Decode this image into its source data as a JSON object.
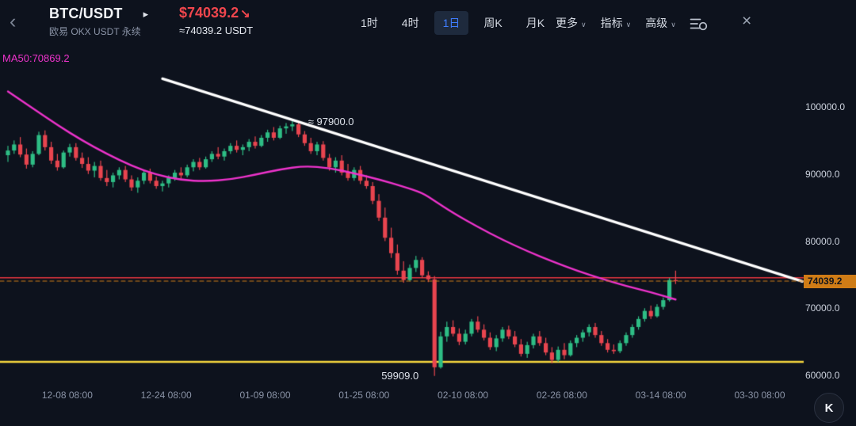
{
  "header": {
    "symbol": "BTC/USDT",
    "exchange_label": "欧易 OKX USDT 永续",
    "price": "$74039.2",
    "price_direction": "↘",
    "approx_price": "≈74039.2 USDT",
    "caret": "∨",
    "icons": {
      "back": "‹",
      "forward": "▸",
      "close": "×"
    },
    "timeframe_tabs": [
      {
        "id": "1h",
        "label": "1时",
        "selected": false
      },
      {
        "id": "4h",
        "label": "4时",
        "selected": false
      },
      {
        "id": "1d",
        "label": "1日",
        "selected": true
      },
      {
        "id": "1w",
        "label": "周K",
        "selected": false
      },
      {
        "id": "1m",
        "label": "月K",
        "selected": false
      }
    ],
    "menus": [
      {
        "id": "more",
        "label": "更多"
      },
      {
        "id": "indicators",
        "label": "指标"
      },
      {
        "id": "advanced",
        "label": "高级"
      }
    ]
  },
  "colors": {
    "up": "#2ebd85",
    "down": "#e8454f",
    "ma": "#ed33cb",
    "trend": "#ffffff",
    "resistance": "#e8363f",
    "support": "#f7d63e",
    "price_tag_bg": "#cf7c16",
    "accent_blue": "#3f7dff",
    "price_red": "#f0464d"
  },
  "chart_data": {
    "type": "candlestick",
    "title": "BTC/USDT OKX USDT perpetual, 1-day candles",
    "ma_label": "MA50:70869.2",
    "ma50_value": 70869.2,
    "last_price": 74039.2,
    "last_price_label": "74039.2",
    "resistance_line": 74550,
    "support_line": 62000,
    "trend_line": {
      "from": {
        "idx": 25,
        "price": 104200
      },
      "to": {
        "idx": 128.5,
        "price": 74000
      }
    },
    "y_ticks": [
      {
        "label": "100000.0",
        "value": 100000
      },
      {
        "label": "90000.0",
        "value": 90000
      },
      {
        "label": "80000.0",
        "value": 80000
      },
      {
        "label": "70000.0",
        "value": 70000
      },
      {
        "label": "60000.0",
        "value": 60000
      }
    ],
    "x_ticks": [
      {
        "label": "12-08 08:00",
        "idx": 9.6
      },
      {
        "label": "12-24 08:00",
        "idx": 25.6
      },
      {
        "label": "01-09 08:00",
        "idx": 41.6
      },
      {
        "label": "01-25 08:00",
        "idx": 57.6
      },
      {
        "label": "02-10 08:00",
        "idx": 73.6
      },
      {
        "label": "02-26 08:00",
        "idx": 89.6
      },
      {
        "label": "03-14 08:00",
        "idx": 105.6
      },
      {
        "label": "03-30 08:00",
        "idx": 121.6
      }
    ],
    "annotations": [
      {
        "text": "≈ 97900.0",
        "idx": 46,
        "price": 97900,
        "side": "right"
      },
      {
        "text": "59909.0",
        "idx": 69,
        "price": 59909,
        "side": "left"
      }
    ],
    "ma50": [
      [
        0,
        102300
      ],
      [
        4,
        99800
      ],
      [
        8,
        97300
      ],
      [
        12,
        95000
      ],
      [
        16,
        93000
      ],
      [
        20,
        91200
      ],
      [
        24,
        89900
      ],
      [
        28,
        89100
      ],
      [
        32,
        88900
      ],
      [
        36,
        89200
      ],
      [
        40,
        89900
      ],
      [
        44,
        90700
      ],
      [
        48,
        91200
      ],
      [
        52,
        90900
      ],
      [
        56,
        90100
      ],
      [
        60,
        89200
      ],
      [
        64,
        88100
      ],
      [
        67,
        87200
      ],
      [
        69,
        86000
      ],
      [
        72,
        84200
      ],
      [
        76,
        82100
      ],
      [
        80,
        80200
      ],
      [
        84,
        78500
      ],
      [
        88,
        77000
      ],
      [
        92,
        75600
      ],
      [
        96,
        74400
      ],
      [
        100,
        73300
      ],
      [
        104,
        72400
      ],
      [
        108,
        71300
      ]
    ],
    "candles": [
      [
        92800,
        94200,
        91800,
        93500
      ],
      [
        93500,
        95000,
        93000,
        94400
      ],
      [
        94400,
        95500,
        92500,
        92900
      ],
      [
        92900,
        93800,
        90800,
        91400
      ],
      [
        91400,
        93400,
        91000,
        93000
      ],
      [
        93000,
        96300,
        92800,
        95800
      ],
      [
        95800,
        96500,
        93500,
        94000
      ],
      [
        94000,
        94800,
        91500,
        92000
      ],
      [
        92000,
        93000,
        90500,
        91000
      ],
      [
        91000,
        93500,
        90800,
        93200
      ],
      [
        93200,
        94500,
        92600,
        94000
      ],
      [
        94000,
        94600,
        92000,
        92400
      ],
      [
        92400,
        93200,
        90900,
        91500
      ],
      [
        91500,
        92500,
        90000,
        90500
      ],
      [
        90500,
        91800,
        89500,
        91200
      ],
      [
        91200,
        92000,
        89000,
        89400
      ],
      [
        89400,
        90600,
        88200,
        88800
      ],
      [
        88800,
        90200,
        88000,
        89800
      ],
      [
        89800,
        91000,
        89200,
        90600
      ],
      [
        90600,
        91200,
        88800,
        89200
      ],
      [
        89200,
        89800,
        87500,
        88000
      ],
      [
        88000,
        89500,
        87200,
        89000
      ],
      [
        89000,
        90500,
        88500,
        90200
      ],
      [
        90200,
        90800,
        88600,
        89000
      ],
      [
        89000,
        89600,
        87800,
        88200
      ],
      [
        88200,
        89000,
        87400,
        88600
      ],
      [
        88600,
        89800,
        88000,
        89400
      ],
      [
        89400,
        90600,
        89000,
        90200
      ],
      [
        90200,
        91000,
        89300,
        89800
      ],
      [
        89800,
        91400,
        89500,
        91000
      ],
      [
        91000,
        92200,
        90400,
        91800
      ],
      [
        91800,
        92400,
        90600,
        91000
      ],
      [
        91000,
        92600,
        90800,
        92200
      ],
      [
        92200,
        93400,
        91800,
        93000
      ],
      [
        93000,
        94000,
        92200,
        92600
      ],
      [
        92600,
        93800,
        92000,
        93400
      ],
      [
        93400,
        94600,
        93000,
        94200
      ],
      [
        94200,
        95000,
        93200,
        93600
      ],
      [
        93600,
        94400,
        92800,
        94000
      ],
      [
        94000,
        95200,
        93400,
        94800
      ],
      [
        94800,
        95600,
        93800,
        94200
      ],
      [
        94200,
        95800,
        94000,
        95400
      ],
      [
        95400,
        96600,
        94800,
        96200
      ],
      [
        96200,
        97000,
        95000,
        95400
      ],
      [
        95400,
        97200,
        95200,
        96800
      ],
      [
        96800,
        97600,
        96000,
        97100
      ],
      [
        97100,
        97900,
        96400,
        97400
      ],
      [
        97400,
        97800,
        95500,
        95900
      ],
      [
        95900,
        96400,
        94200,
        94600
      ],
      [
        94600,
        95400,
        93000,
        93400
      ],
      [
        93400,
        94800,
        92800,
        94400
      ],
      [
        94400,
        94900,
        92000,
        92400
      ],
      [
        92400,
        93000,
        90500,
        91000
      ],
      [
        91000,
        92500,
        90200,
        92000
      ],
      [
        92000,
        92800,
        89800,
        90200
      ],
      [
        90200,
        91500,
        89000,
        89400
      ],
      [
        89400,
        91000,
        89000,
        90600
      ],
      [
        90600,
        91200,
        88500,
        89000
      ],
      [
        89000,
        89800,
        87800,
        88200
      ],
      [
        88200,
        88800,
        85500,
        86000
      ],
      [
        86000,
        87000,
        83000,
        83500
      ],
      [
        83500,
        85000,
        80000,
        80500
      ],
      [
        80500,
        82000,
        77500,
        78200
      ],
      [
        78200,
        79500,
        75000,
        75600
      ],
      [
        75600,
        77000,
        73800,
        74200
      ],
      [
        74200,
        76500,
        74000,
        76000
      ],
      [
        76000,
        77800,
        75400,
        77200
      ],
      [
        77200,
        77600,
        74500,
        74900
      ],
      [
        74900,
        75500,
        73900,
        74300
      ],
      [
        74300,
        74800,
        59909,
        61200
      ],
      [
        61200,
        66500,
        61000,
        65800
      ],
      [
        65800,
        68000,
        65000,
        67200
      ],
      [
        67200,
        68200,
        65800,
        66200
      ],
      [
        66200,
        67000,
        64500,
        65000
      ],
      [
        65000,
        66800,
        64600,
        66200
      ],
      [
        66200,
        68400,
        65800,
        68000
      ],
      [
        68000,
        68800,
        66400,
        66800
      ],
      [
        66800,
        67600,
        65200,
        65600
      ],
      [
        65600,
        66400,
        63800,
        64200
      ],
      [
        64200,
        66000,
        63600,
        65500
      ],
      [
        65500,
        67200,
        65000,
        66800
      ],
      [
        66800,
        67400,
        65400,
        65800
      ],
      [
        65800,
        66600,
        64200,
        64600
      ],
      [
        64600,
        65400,
        62800,
        63200
      ],
      [
        63200,
        65000,
        62600,
        64500
      ],
      [
        64500,
        66200,
        64000,
        65800
      ],
      [
        65800,
        66600,
        64400,
        64800
      ],
      [
        64800,
        65600,
        63000,
        63400
      ],
      [
        63400,
        64200,
        61800,
        62300
      ],
      [
        62300,
        64300,
        62000,
        63800
      ],
      [
        63800,
        64800,
        62400,
        63000
      ],
      [
        63000,
        65200,
        62800,
        64800
      ],
      [
        64800,
        66000,
        64200,
        65600
      ],
      [
        65600,
        66800,
        65000,
        66400
      ],
      [
        66400,
        67600,
        65800,
        67200
      ],
      [
        67200,
        67800,
        65600,
        66000
      ],
      [
        66000,
        66600,
        64400,
        64800
      ],
      [
        64800,
        65400,
        63400,
        63800
      ],
      [
        63800,
        64600,
        63200,
        63600
      ],
      [
        63600,
        65200,
        63300,
        64800
      ],
      [
        64800,
        66400,
        64400,
        66000
      ],
      [
        66000,
        67600,
        65600,
        67200
      ],
      [
        67200,
        68800,
        66800,
        68400
      ],
      [
        68400,
        70000,
        68000,
        69600
      ],
      [
        69600,
        70400,
        68400,
        68800
      ],
      [
        68800,
        70600,
        68600,
        70200
      ],
      [
        70200,
        71600,
        69800,
        71200
      ],
      [
        71200,
        74500,
        71000,
        74200
      ],
      [
        74200,
        75600,
        73600,
        74039.2
      ]
    ]
  },
  "logo": {
    "label": "K"
  }
}
